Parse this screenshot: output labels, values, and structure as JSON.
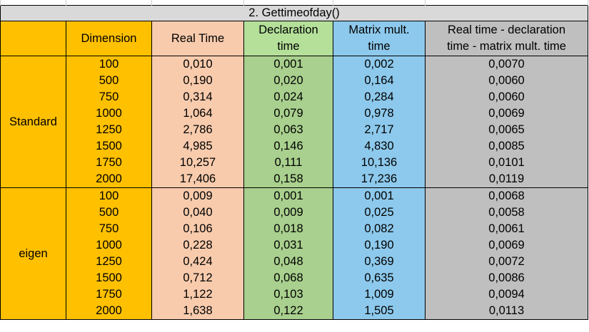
{
  "title": "2. Gettimeofday()",
  "headers": {
    "dimension": "Dimension",
    "real_time": "Real Time",
    "declaration_line1": "Declaration",
    "declaration_line2": "time",
    "matrix_line1": "Matrix mult.",
    "matrix_line2": "time",
    "diff_line1": "Real time - declaration",
    "diff_line2": "time - matrix mult. time"
  },
  "groups": [
    {
      "label": "Standard",
      "rows": [
        {
          "dimension": "100",
          "real": "0,010",
          "decl": "0,001",
          "mult": "0,002",
          "diff": "0,0070"
        },
        {
          "dimension": "500",
          "real": "0,190",
          "decl": "0,020",
          "mult": "0,164",
          "diff": "0,0060"
        },
        {
          "dimension": "750",
          "real": "0,314",
          "decl": "0,024",
          "mult": "0,284",
          "diff": "0,0060"
        },
        {
          "dimension": "1000",
          "real": "1,064",
          "decl": "0,079",
          "mult": "0,978",
          "diff": "0,0069"
        },
        {
          "dimension": "1250",
          "real": "2,786",
          "decl": "0,063",
          "mult": "2,717",
          "diff": "0,0065"
        },
        {
          "dimension": "1500",
          "real": "4,985",
          "decl": "0,146",
          "mult": "4,830",
          "diff": "0,0085"
        },
        {
          "dimension": "1750",
          "real": "10,257",
          "decl": "0,111",
          "mult": "10,136",
          "diff": "0,0101"
        },
        {
          "dimension": "2000",
          "real": "17,406",
          "decl": "0,158",
          "mult": "17,236",
          "diff": "0,0119"
        }
      ]
    },
    {
      "label": "eigen",
      "rows": [
        {
          "dimension": "100",
          "real": "0,009",
          "decl": "0,001",
          "mult": "0,001",
          "diff": "0,0068"
        },
        {
          "dimension": "500",
          "real": "0,040",
          "decl": "0,009",
          "mult": "0,025",
          "diff": "0,0058"
        },
        {
          "dimension": "750",
          "real": "0,106",
          "decl": "0,018",
          "mult": "0,082",
          "diff": "0,0061"
        },
        {
          "dimension": "1000",
          "real": "0,228",
          "decl": "0,031",
          "mult": "0,190",
          "diff": "0,0069"
        },
        {
          "dimension": "1250",
          "real": "0,424",
          "decl": "0,048",
          "mult": "0,369",
          "diff": "0,0072"
        },
        {
          "dimension": "1500",
          "real": "0,712",
          "decl": "0,068",
          "mult": "0,635",
          "diff": "0,0086"
        },
        {
          "dimension": "1750",
          "real": "1,122",
          "decl": "0,103",
          "mult": "1,009",
          "diff": "0,0094"
        },
        {
          "dimension": "2000",
          "real": "1,638",
          "decl": "0,122",
          "mult": "1,505",
          "diff": "0,0113"
        }
      ]
    }
  ],
  "colors": {
    "group_column": "#ffc000",
    "real_time": "#f8cbad",
    "declaration": "#a9d08e",
    "matrix_mult": "#8dc9ec",
    "difference": "#bfbfbf",
    "title_bar": "#d9d9d9"
  }
}
